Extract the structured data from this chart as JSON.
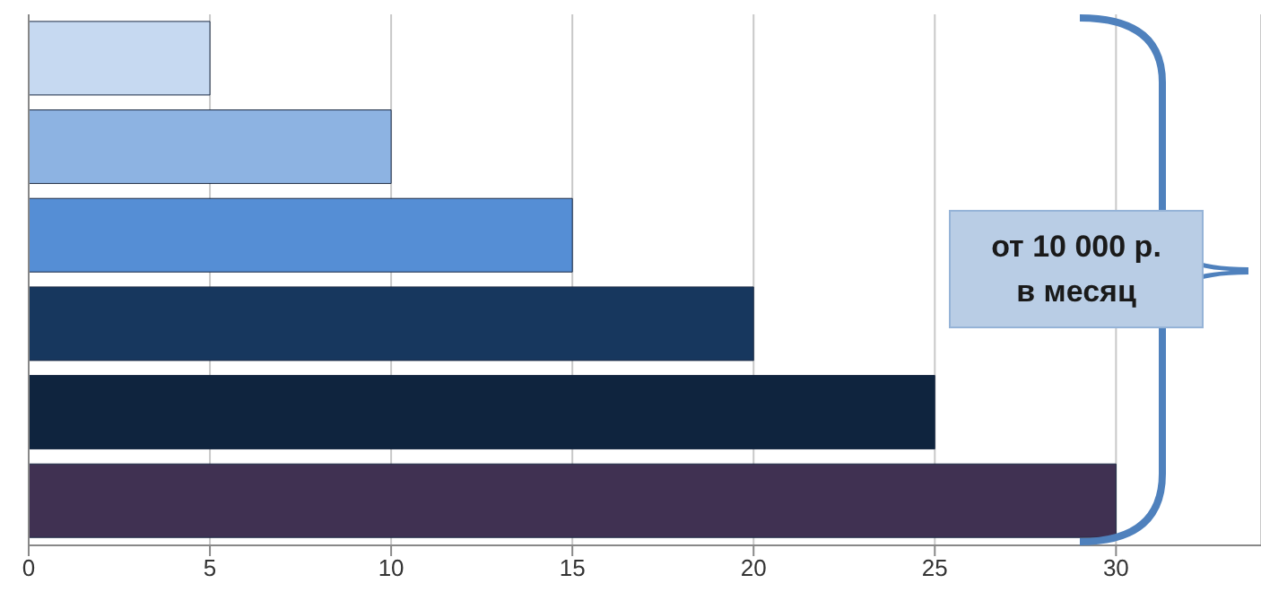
{
  "chart_data": {
    "type": "bar",
    "orientation": "horizontal",
    "categories": [
      null,
      null,
      null,
      null,
      null,
      null
    ],
    "values": [
      5,
      10,
      15,
      20,
      25,
      30
    ],
    "colors": [
      "#c6d9f1",
      "#8db3e2",
      "#558ed5",
      "#17375e",
      "#0f243e",
      "#403152"
    ],
    "xlim": [
      0,
      34
    ],
    "xticks": [
      0,
      5,
      10,
      15,
      20,
      25,
      30
    ],
    "grid": "x",
    "tick_labels": "x",
    "annotations": [
      "от 10 000 р. в месяц"
    ]
  }
}
